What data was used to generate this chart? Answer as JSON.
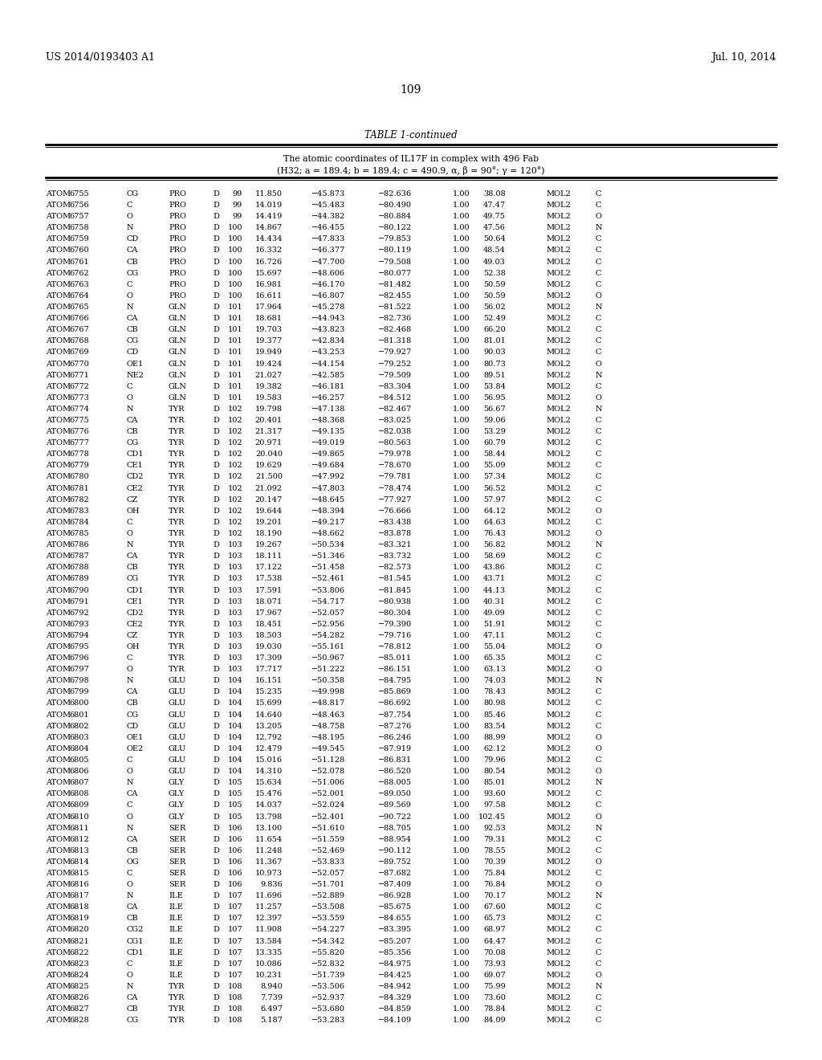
{
  "patent_number": "US 2014/0193403 A1",
  "patent_date": "Jul. 10, 2014",
  "page_number": "109",
  "table_title": "TABLE 1-continued",
  "table_subtitle1": "The atomic coordinates of IL17F in complex with 496 Fab",
  "table_subtitle2": "(H32; a = 189.4; b = 189.4; c = 490.9, α, β = 90°; γ = 120°)",
  "rows": [
    [
      "ATOM",
      "6755",
      "CG",
      "PRO",
      "D",
      "99",
      "11.850",
      "−45.873",
      "−82.636",
      "1.00",
      "38.08",
      "MOL2",
      "C"
    ],
    [
      "ATOM",
      "6756",
      "C",
      "PRO",
      "D",
      "99",
      "14.019",
      "−45.483",
      "−80.490",
      "1.00",
      "47.47",
      "MOL2",
      "C"
    ],
    [
      "ATOM",
      "6757",
      "O",
      "PRO",
      "D",
      "99",
      "14.419",
      "−44.382",
      "−80.884",
      "1.00",
      "49.75",
      "MOL2",
      "O"
    ],
    [
      "ATOM",
      "6758",
      "N",
      "PRO",
      "D",
      "100",
      "14.867",
      "−46.455",
      "−80.122",
      "1.00",
      "47.56",
      "MOL2",
      "N"
    ],
    [
      "ATOM",
      "6759",
      "CD",
      "PRO",
      "D",
      "100",
      "14.434",
      "−47.833",
      "−79.853",
      "1.00",
      "50.64",
      "MOL2",
      "C"
    ],
    [
      "ATOM",
      "6760",
      "CA",
      "PRO",
      "D",
      "100",
      "16.332",
      "−46.377",
      "−80.119",
      "1.00",
      "48.54",
      "MOL2",
      "C"
    ],
    [
      "ATOM",
      "6761",
      "CB",
      "PRO",
      "D",
      "100",
      "16.726",
      "−47.700",
      "−79.508",
      "1.00",
      "49.03",
      "MOL2",
      "C"
    ],
    [
      "ATOM",
      "6762",
      "CG",
      "PRO",
      "D",
      "100",
      "15.697",
      "−48.606",
      "−80.077",
      "1.00",
      "52.38",
      "MOL2",
      "C"
    ],
    [
      "ATOM",
      "6763",
      "C",
      "PRO",
      "D",
      "100",
      "16.981",
      "−46.170",
      "−81.482",
      "1.00",
      "50.59",
      "MOL2",
      "C"
    ],
    [
      "ATOM",
      "6764",
      "O",
      "PRO",
      "D",
      "100",
      "16.611",
      "−46.807",
      "−82.455",
      "1.00",
      "50.59",
      "MOL2",
      "O"
    ],
    [
      "ATOM",
      "6765",
      "N",
      "GLN",
      "D",
      "101",
      "17.964",
      "−45.278",
      "−81.522",
      "1.00",
      "56.02",
      "MOL2",
      "N"
    ],
    [
      "ATOM",
      "6766",
      "CA",
      "GLN",
      "D",
      "101",
      "18.681",
      "−44.943",
      "−82.736",
      "1.00",
      "52.49",
      "MOL2",
      "C"
    ],
    [
      "ATOM",
      "6767",
      "CB",
      "GLN",
      "D",
      "101",
      "19.703",
      "−43.823",
      "−82.468",
      "1.00",
      "66.20",
      "MOL2",
      "C"
    ],
    [
      "ATOM",
      "6768",
      "CG",
      "GLN",
      "D",
      "101",
      "19.377",
      "−42.834",
      "−81.318",
      "1.00",
      "81.01",
      "MOL2",
      "C"
    ],
    [
      "ATOM",
      "6769",
      "CD",
      "GLN",
      "D",
      "101",
      "19.949",
      "−43.253",
      "−79.927",
      "1.00",
      "90.03",
      "MOL2",
      "C"
    ],
    [
      "ATOM",
      "6770",
      "OE1",
      "GLN",
      "D",
      "101",
      "19.424",
      "−44.154",
      "−79.252",
      "1.00",
      "80.73",
      "MOL2",
      "O"
    ],
    [
      "ATOM",
      "6771",
      "NE2",
      "GLN",
      "D",
      "101",
      "21.027",
      "−42.585",
      "−79.509",
      "1.00",
      "89.51",
      "MOL2",
      "N"
    ],
    [
      "ATOM",
      "6772",
      "C",
      "GLN",
      "D",
      "101",
      "19.382",
      "−46.181",
      "−83.304",
      "1.00",
      "53.84",
      "MOL2",
      "C"
    ],
    [
      "ATOM",
      "6773",
      "O",
      "GLN",
      "D",
      "101",
      "19.583",
      "−46.257",
      "−84.512",
      "1.00",
      "56.95",
      "MOL2",
      "O"
    ],
    [
      "ATOM",
      "6774",
      "N",
      "TYR",
      "D",
      "102",
      "19.798",
      "−47.138",
      "−82.467",
      "1.00",
      "56.67",
      "MOL2",
      "N"
    ],
    [
      "ATOM",
      "6775",
      "CA",
      "TYR",
      "D",
      "102",
      "20.401",
      "−48.368",
      "−83.025",
      "1.00",
      "59.06",
      "MOL2",
      "C"
    ],
    [
      "ATOM",
      "6776",
      "CB",
      "TYR",
      "D",
      "102",
      "21.317",
      "−49.135",
      "−82.038",
      "1.00",
      "53.29",
      "MOL2",
      "C"
    ],
    [
      "ATOM",
      "6777",
      "CG",
      "TYR",
      "D",
      "102",
      "20.971",
      "−49.019",
      "−80.563",
      "1.00",
      "60.79",
      "MOL2",
      "C"
    ],
    [
      "ATOM",
      "6778",
      "CD1",
      "TYR",
      "D",
      "102",
      "20.040",
      "−49.865",
      "−79.978",
      "1.00",
      "58.44",
      "MOL2",
      "C"
    ],
    [
      "ATOM",
      "6779",
      "CE1",
      "TYR",
      "D",
      "102",
      "19.629",
      "−49.684",
      "−78.670",
      "1.00",
      "55.09",
      "MOL2",
      "C"
    ],
    [
      "ATOM",
      "6780",
      "CD2",
      "TYR",
      "D",
      "102",
      "21.500",
      "−47.992",
      "−79.781",
      "1.00",
      "57.34",
      "MOL2",
      "C"
    ],
    [
      "ATOM",
      "6781",
      "CE2",
      "TYR",
      "D",
      "102",
      "21.092",
      "−47.803",
      "−78.474",
      "1.00",
      "56.52",
      "MOL2",
      "C"
    ],
    [
      "ATOM",
      "6782",
      "CZ",
      "TYR",
      "D",
      "102",
      "20.147",
      "−48.645",
      "−77.927",
      "1.00",
      "57.97",
      "MOL2",
      "C"
    ],
    [
      "ATOM",
      "6783",
      "OH",
      "TYR",
      "D",
      "102",
      "19.644",
      "−48.394",
      "−76.666",
      "1.00",
      "64.12",
      "MOL2",
      "O"
    ],
    [
      "ATOM",
      "6784",
      "C",
      "TYR",
      "D",
      "102",
      "19.201",
      "−49.217",
      "−83.438",
      "1.00",
      "64.63",
      "MOL2",
      "C"
    ],
    [
      "ATOM",
      "6785",
      "O",
      "TYR",
      "D",
      "102",
      "18.190",
      "−48.662",
      "−83.878",
      "1.00",
      "76.43",
      "MOL2",
      "O"
    ],
    [
      "ATOM",
      "6786",
      "N",
      "TYR",
      "D",
      "103",
      "19.267",
      "−50.534",
      "−83.321",
      "1.00",
      "56.82",
      "MOL2",
      "N"
    ],
    [
      "ATOM",
      "6787",
      "CA",
      "TYR",
      "D",
      "103",
      "18.111",
      "−51.346",
      "−83.732",
      "1.00",
      "58.69",
      "MOL2",
      "C"
    ],
    [
      "ATOM",
      "6788",
      "CB",
      "TYR",
      "D",
      "103",
      "17.122",
      "−51.458",
      "−82.573",
      "1.00",
      "43.86",
      "MOL2",
      "C"
    ],
    [
      "ATOM",
      "6789",
      "CG",
      "TYR",
      "D",
      "103",
      "17.538",
      "−52.461",
      "−81.545",
      "1.00",
      "43.71",
      "MOL2",
      "C"
    ],
    [
      "ATOM",
      "6790",
      "CD1",
      "TYR",
      "D",
      "103",
      "17.591",
      "−53.806",
      "−81.845",
      "1.00",
      "44.13",
      "MOL2",
      "C"
    ],
    [
      "ATOM",
      "6791",
      "CE1",
      "TYR",
      "D",
      "103",
      "18.071",
      "−54.717",
      "−80.938",
      "1.00",
      "40.31",
      "MOL2",
      "C"
    ],
    [
      "ATOM",
      "6792",
      "CD2",
      "TYR",
      "D",
      "103",
      "17.967",
      "−52.057",
      "−80.304",
      "1.00",
      "49.09",
      "MOL2",
      "C"
    ],
    [
      "ATOM",
      "6793",
      "CE2",
      "TYR",
      "D",
      "103",
      "18.451",
      "−52.956",
      "−79.390",
      "1.00",
      "51.91",
      "MOL2",
      "C"
    ],
    [
      "ATOM",
      "6794",
      "CZ",
      "TYR",
      "D",
      "103",
      "18.503",
      "−54.282",
      "−79.716",
      "1.00",
      "47.11",
      "MOL2",
      "C"
    ],
    [
      "ATOM",
      "6795",
      "OH",
      "TYR",
      "D",
      "103",
      "19.030",
      "−55.161",
      "−78.812",
      "1.00",
      "55.04",
      "MOL2",
      "O"
    ],
    [
      "ATOM",
      "6796",
      "C",
      "TYR",
      "D",
      "103",
      "17.309",
      "−50.967",
      "−85.011",
      "1.00",
      "65.35",
      "MOL2",
      "C"
    ],
    [
      "ATOM",
      "6797",
      "O",
      "TYR",
      "D",
      "103",
      "17.717",
      "−51.222",
      "−86.151",
      "1.00",
      "63.13",
      "MOL2",
      "O"
    ],
    [
      "ATOM",
      "6798",
      "N",
      "GLU",
      "D",
      "104",
      "16.151",
      "−50.358",
      "−84.795",
      "1.00",
      "74.03",
      "MOL2",
      "N"
    ],
    [
      "ATOM",
      "6799",
      "CA",
      "GLU",
      "D",
      "104",
      "15.235",
      "−49.998",
      "−85.869",
      "1.00",
      "78.43",
      "MOL2",
      "C"
    ],
    [
      "ATOM",
      "6800",
      "CB",
      "GLU",
      "D",
      "104",
      "15.699",
      "−48.817",
      "−86.692",
      "1.00",
      "80.98",
      "MOL2",
      "C"
    ],
    [
      "ATOM",
      "6801",
      "CG",
      "GLU",
      "D",
      "104",
      "14.640",
      "−48.463",
      "−87.754",
      "1.00",
      "85.46",
      "MOL2",
      "C"
    ],
    [
      "ATOM",
      "6802",
      "CD",
      "GLU",
      "D",
      "104",
      "13.205",
      "−48.758",
      "−87.276",
      "1.00",
      "83.54",
      "MOL2",
      "C"
    ],
    [
      "ATOM",
      "6803",
      "OE1",
      "GLU",
      "D",
      "104",
      "12.792",
      "−48.195",
      "−86.246",
      "1.00",
      "88.99",
      "MOL2",
      "O"
    ],
    [
      "ATOM",
      "6804",
      "OE2",
      "GLU",
      "D",
      "104",
      "12.479",
      "−49.545",
      "−87.919",
      "1.00",
      "62.12",
      "MOL2",
      "O"
    ],
    [
      "ATOM",
      "6805",
      "C",
      "GLU",
      "D",
      "104",
      "15.016",
      "−51.128",
      "−86.831",
      "1.00",
      "79.96",
      "MOL2",
      "C"
    ],
    [
      "ATOM",
      "6806",
      "O",
      "GLU",
      "D",
      "104",
      "14.310",
      "−52.078",
      "−86.520",
      "1.00",
      "80.54",
      "MOL2",
      "O"
    ],
    [
      "ATOM",
      "6807",
      "N",
      "GLY",
      "D",
      "105",
      "15.634",
      "−51.006",
      "−88.005",
      "1.00",
      "85.01",
      "MOL2",
      "N"
    ],
    [
      "ATOM",
      "6808",
      "CA",
      "GLY",
      "D",
      "105",
      "15.476",
      "−52.001",
      "−89.050",
      "1.00",
      "93.60",
      "MOL2",
      "C"
    ],
    [
      "ATOM",
      "6809",
      "C",
      "GLY",
      "D",
      "105",
      "14.037",
      "−52.024",
      "−89.569",
      "1.00",
      "97.58",
      "MOL2",
      "C"
    ],
    [
      "ATOM",
      "6810",
      "O",
      "GLY",
      "D",
      "105",
      "13.798",
      "−52.401",
      "−90.722",
      "1.00",
      "102.45",
      "MOL2",
      "O"
    ],
    [
      "ATOM",
      "6811",
      "N",
      "SER",
      "D",
      "106",
      "13.100",
      "−51.610",
      "−88.705",
      "1.00",
      "92.53",
      "MOL2",
      "N"
    ],
    [
      "ATOM",
      "6812",
      "CA",
      "SER",
      "D",
      "106",
      "11.654",
      "−51.559",
      "−88.954",
      "1.00",
      "79.31",
      "MOL2",
      "C"
    ],
    [
      "ATOM",
      "6813",
      "CB",
      "SER",
      "D",
      "106",
      "11.248",
      "−52.469",
      "−90.112",
      "1.00",
      "78.55",
      "MOL2",
      "C"
    ],
    [
      "ATOM",
      "6814",
      "OG",
      "SER",
      "D",
      "106",
      "11.367",
      "−53.833",
      "−89.752",
      "1.00",
      "70.39",
      "MOL2",
      "O"
    ],
    [
      "ATOM",
      "6815",
      "C",
      "SER",
      "D",
      "106",
      "10.973",
      "−52.057",
      "−87.682",
      "1.00",
      "75.84",
      "MOL2",
      "C"
    ],
    [
      "ATOM",
      "6816",
      "O",
      "SER",
      "D",
      "106",
      "9.836",
      "−51.701",
      "−87.409",
      "1.00",
      "76.84",
      "MOL2",
      "O"
    ],
    [
      "ATOM",
      "6817",
      "N",
      "ILE",
      "D",
      "107",
      "11.696",
      "−52.889",
      "−86.928",
      "1.00",
      "70.17",
      "MOL2",
      "N"
    ],
    [
      "ATOM",
      "6818",
      "CA",
      "ILE",
      "D",
      "107",
      "11.257",
      "−53.508",
      "−85.675",
      "1.00",
      "67.60",
      "MOL2",
      "C"
    ],
    [
      "ATOM",
      "6819",
      "CB",
      "ILE",
      "D",
      "107",
      "12.397",
      "−53.559",
      "−84.655",
      "1.00",
      "65.73",
      "MOL2",
      "C"
    ],
    [
      "ATOM",
      "6820",
      "CG2",
      "ILE",
      "D",
      "107",
      "11.908",
      "−54.227",
      "−83.395",
      "1.00",
      "68.97",
      "MOL2",
      "C"
    ],
    [
      "ATOM",
      "6821",
      "CG1",
      "ILE",
      "D",
      "107",
      "13.584",
      "−54.342",
      "−85.207",
      "1.00",
      "64.47",
      "MOL2",
      "C"
    ],
    [
      "ATOM",
      "6822",
      "CD1",
      "ILE",
      "D",
      "107",
      "13.335",
      "−55.820",
      "−85.356",
      "1.00",
      "70.08",
      "MOL2",
      "C"
    ],
    [
      "ATOM",
      "6823",
      "C",
      "ILE",
      "D",
      "107",
      "10.086",
      "−52.832",
      "−84.975",
      "1.00",
      "73.93",
      "MOL2",
      "C"
    ],
    [
      "ATOM",
      "6824",
      "O",
      "ILE",
      "D",
      "107",
      "10.231",
      "−51.739",
      "−84.425",
      "1.00",
      "69.07",
      "MOL2",
      "O"
    ],
    [
      "ATOM",
      "6825",
      "N",
      "TYR",
      "D",
      "108",
      "8.940",
      "−53.506",
      "−84.942",
      "1.00",
      "75.99",
      "MOL2",
      "N"
    ],
    [
      "ATOM",
      "6826",
      "CA",
      "TYR",
      "D",
      "108",
      "7.739",
      "−52.937",
      "−84.329",
      "1.00",
      "73.60",
      "MOL2",
      "C"
    ],
    [
      "ATOM",
      "6827",
      "CB",
      "TYR",
      "D",
      "108",
      "6.497",
      "−53.680",
      "−84.859",
      "1.00",
      "78.84",
      "MOL2",
      "C"
    ],
    [
      "ATOM",
      "6828",
      "CG",
      "TYR",
      "D",
      "108",
      "5.187",
      "−53.283",
      "−84.109",
      "1.00",
      "84.09",
      "MOL2",
      "C"
    ]
  ],
  "bg_color": "#ffffff",
  "text_color": "#000000"
}
